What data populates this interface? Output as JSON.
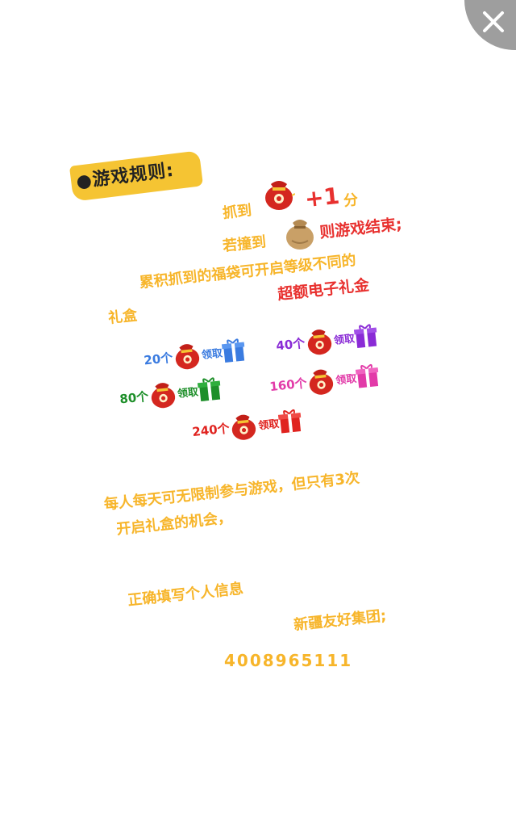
{
  "close_icon": "close-icon",
  "rules": {
    "title": "●游戏规则:",
    "catch_prefix": "抓到",
    "catch_score": "+1",
    "catch_unit": "分",
    "hit_prefix": "若撞到",
    "hit_result": "则游戏结束;",
    "accumulate_line1": "累积抓到的福袋可开启等级不同的",
    "accumulate_highlight": "超额电子礼金",
    "accumulate_line2": "礼盒"
  },
  "rewards": [
    {
      "count": "20个",
      "get": "领取",
      "color": "#3a7be0"
    },
    {
      "count": "40个",
      "get": "领取",
      "color": "#8a2bd6"
    },
    {
      "count": "80个",
      "get": "领取",
      "color": "#1e8f2a"
    },
    {
      "count": "160个",
      "get": "领取",
      "color": "#e23aa8"
    },
    {
      "count": "240个",
      "get": "领取",
      "color": "#e0231f"
    }
  ],
  "daily": {
    "line1": "每人每天可无限制参与游戏，但只有3次",
    "line2": "开启礼盒的机会，"
  },
  "info": {
    "fill_info": "正确填写个人信息",
    "company": "新疆友好集团;",
    "phone": "4008965111"
  },
  "colors": {
    "accent": "#f7b52a",
    "highlight": "#e8312f",
    "badge": "#f5c433"
  }
}
